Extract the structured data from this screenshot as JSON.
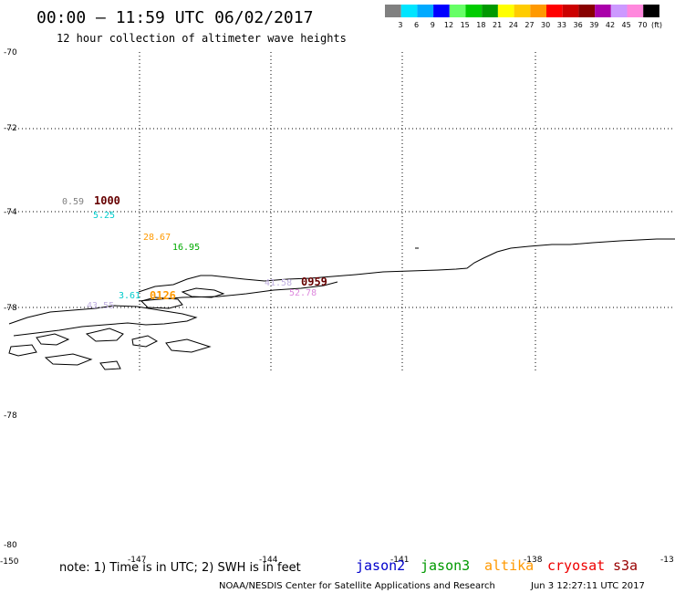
{
  "header": {
    "title": "00:00 – 11:59 UTC 06/02/2017",
    "subtitle": "12 hour collection of altimeter wave heights"
  },
  "colorbar": {
    "unit_label": "(ft)",
    "bins": [
      {
        "label": "3",
        "color": "#808080"
      },
      {
        "label": "6",
        "color": "#00e5ff"
      },
      {
        "label": "9",
        "color": "#00aaff"
      },
      {
        "label": "12",
        "color": "#0000ff"
      },
      {
        "label": "15",
        "color": "#66ff66"
      },
      {
        "label": "18",
        "color": "#00cc00"
      },
      {
        "label": "21",
        "color": "#009900"
      },
      {
        "label": "24",
        "color": "#ffff00"
      },
      {
        "label": "27",
        "color": "#ffcc00"
      },
      {
        "label": "30",
        "color": "#ff9900"
      },
      {
        "label": "33",
        "color": "#ff0000"
      },
      {
        "label": "36",
        "color": "#cc0000"
      },
      {
        "label": "39",
        "color": "#880000"
      },
      {
        "label": "42",
        "color": "#aa00aa"
      },
      {
        "label": "45",
        "color": "#cc99ff"
      },
      {
        "label": "70",
        "color": "#ff88dd"
      },
      {
        "label": "",
        "color": "#000000"
      }
    ]
  },
  "axes": {
    "lat_labels": [
      "-70",
      "-72",
      "-74",
      "-78",
      "-78",
      "-80"
    ],
    "lon_labels": [
      "-150",
      "-147",
      "-144",
      "-141",
      "-138",
      "-13"
    ]
  },
  "observations": [
    {
      "text": "0.59",
      "color": "#808080"
    },
    {
      "text": "1000",
      "color": "#660000"
    },
    {
      "text": "5.25",
      "color": "#00cccc"
    },
    {
      "text": "28.67",
      "color": "#ff9900"
    },
    {
      "text": "16.95",
      "color": "#00aa00"
    },
    {
      "text": "0959",
      "color": "#660000"
    },
    {
      "text": "41.58",
      "color": "#c0b0e0"
    },
    {
      "text": "52.78",
      "color": "#dd88dd"
    },
    {
      "text": "3.61",
      "color": "#00cccc"
    },
    {
      "text": "0126",
      "color": "#ff9900"
    },
    {
      "text": "43.55",
      "color": "#c0b0e0"
    }
  ],
  "footer": {
    "note": "note: 1) Time is in UTC; 2) SWH is in feet",
    "missions": [
      {
        "name": "jason2",
        "color": "#0000cc"
      },
      {
        "name": "jason3",
        "color": "#009900"
      },
      {
        "name": "altika",
        "color": "#ff9900"
      },
      {
        "name": "cryosat",
        "color": "#ee0000"
      },
      {
        "name": "s3a",
        "color": "#990000"
      }
    ],
    "credit": "NOAA/NESDIS Center for Satellite Applications and Research",
    "timestamp": "Jun  3 12:27:11 UTC 2017"
  }
}
